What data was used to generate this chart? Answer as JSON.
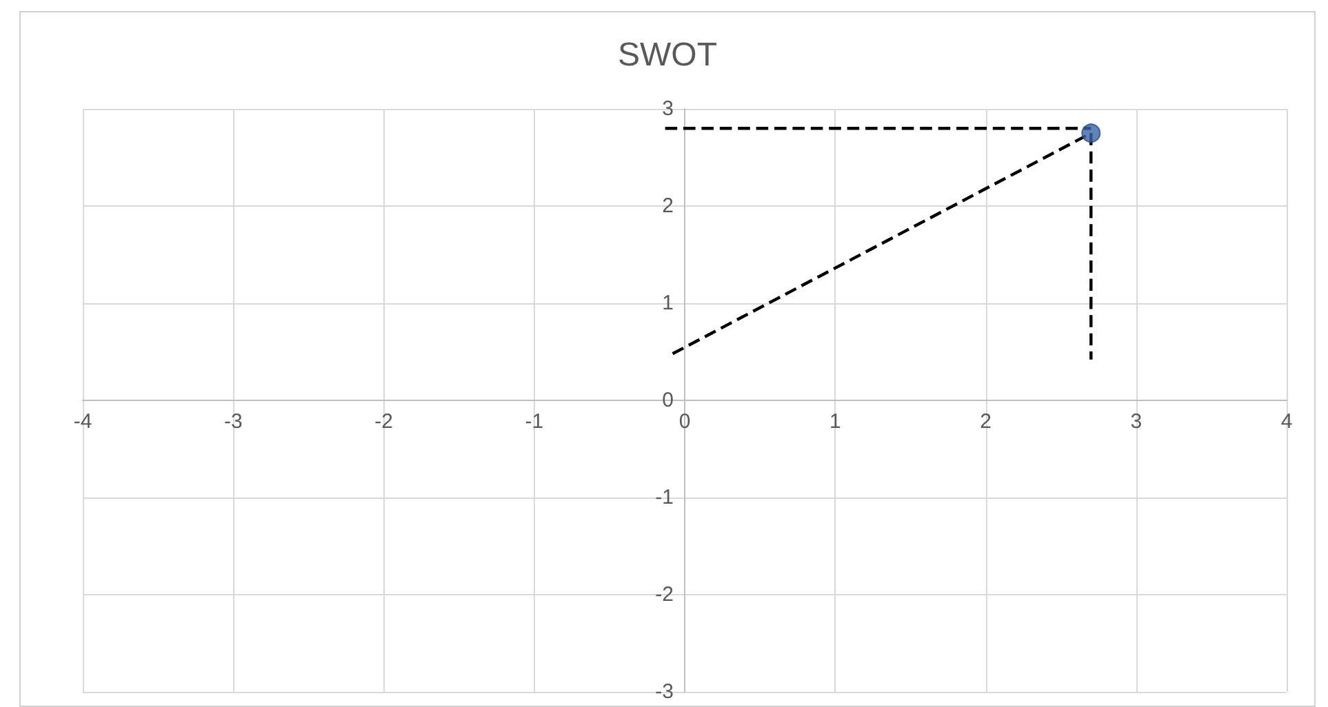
{
  "chart_data": {
    "type": "scatter",
    "title": "SWOT",
    "xlim": [
      -4,
      4
    ],
    "xticks": [
      -4,
      -3,
      -2,
      -1,
      0,
      1,
      2,
      3,
      4
    ],
    "ylim": [
      -3,
      3
    ],
    "yticks": [
      -3,
      -2,
      -1,
      0,
      1,
      2,
      3
    ],
    "grid": true,
    "series": [
      {
        "type": "line",
        "color": "#000000",
        "line_style": "dashed",
        "marker": "none",
        "x": [
          -0.13,
          2.7
        ],
        "values": [
          2.8,
          2.8
        ]
      },
      {
        "type": "line",
        "color": "#000000",
        "line_style": "dashed",
        "marker": "none",
        "x": [
          2.7,
          2.7
        ],
        "values": [
          2.75,
          0.42
        ]
      },
      {
        "type": "line",
        "color": "#000000",
        "line_style": "dashed",
        "marker": "none",
        "x": [
          -0.08,
          2.7
        ],
        "values": [
          0.48,
          2.75
        ]
      },
      {
        "color": "#3a64a8",
        "marker": "circle",
        "x": [
          2.7
        ],
        "values": [
          2.75
        ]
      }
    ]
  }
}
